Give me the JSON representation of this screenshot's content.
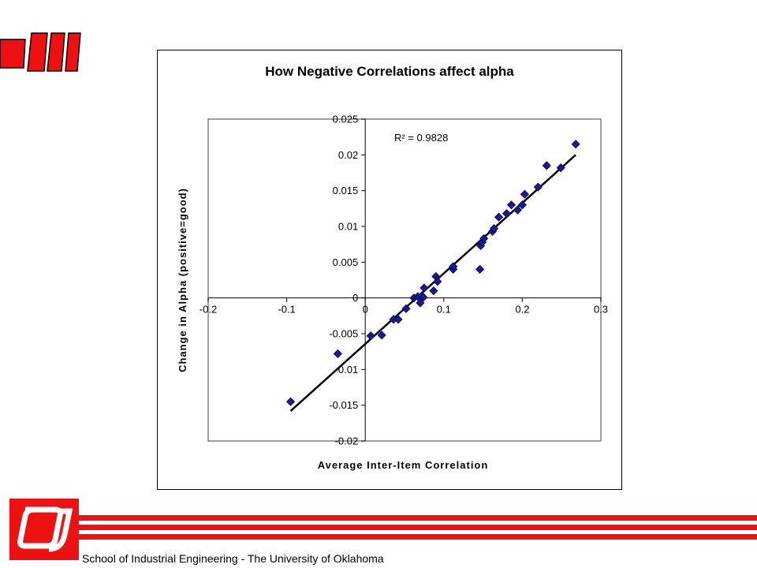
{
  "footer": {
    "text": "School of Industrial Engineering - The University of Oklahoma"
  },
  "colors": {
    "accent": "#ee1111",
    "marker": "#1a1a8c",
    "marker_edge": "#000066"
  },
  "chart_data": {
    "type": "scatter",
    "title": "How Negative Correlations affect alpha",
    "xlabel": "Average Inter-Item Correlation",
    "ylabel": "Change in Alpha (positive=good)",
    "xlim": [
      -0.2,
      0.3
    ],
    "ylim": [
      -0.02,
      0.025
    ],
    "x_ticks": [
      -0.2,
      -0.1,
      0,
      0.1,
      0.2,
      0.3
    ],
    "x_tick_labels": [
      "-0.2",
      "-0.1",
      "0",
      "0.1",
      "0.2",
      "0.3"
    ],
    "y_ticks": [
      0.025,
      0.02,
      0.015,
      0.01,
      0.005,
      0,
      -0.005,
      -0.01,
      -0.015,
      -0.02
    ],
    "y_tick_labels": [
      "0.025",
      "0.02",
      "0.015",
      "0.01",
      "0.005",
      "0",
      "-0.005",
      "-0.01",
      "-0.015",
      "-0.02"
    ],
    "annotation": "R² = 0.9828",
    "trendline": {
      "x": [
        -0.095,
        0.268
      ],
      "y": [
        -0.0158,
        0.02
      ]
    },
    "points": [
      [
        -0.095,
        -0.0145
      ],
      [
        -0.035,
        -0.0078
      ],
      [
        0.007,
        -0.0053
      ],
      [
        0.021,
        -0.0052
      ],
      [
        0.036,
        -0.003
      ],
      [
        0.042,
        -0.003
      ],
      [
        0.052,
        -0.0015
      ],
      [
        0.062,
        0.0
      ],
      [
        0.067,
        0.0002
      ],
      [
        0.07,
        -0.0007
      ],
      [
        0.072,
        0.0003
      ],
      [
        0.074,
        0.0001
      ],
      [
        0.075,
        0.0014
      ],
      [
        0.087,
        0.001
      ],
      [
        0.09,
        0.003
      ],
      [
        0.092,
        0.0023
      ],
      [
        0.112,
        0.004
      ],
      [
        0.112,
        0.0044
      ],
      [
        0.146,
        0.004
      ],
      [
        0.147,
        0.0073
      ],
      [
        0.149,
        0.0078
      ],
      [
        0.151,
        0.0083
      ],
      [
        0.162,
        0.0093
      ],
      [
        0.164,
        0.0097
      ],
      [
        0.17,
        0.0113
      ],
      [
        0.18,
        0.0118
      ],
      [
        0.186,
        0.013
      ],
      [
        0.194,
        0.0123
      ],
      [
        0.2,
        0.013
      ],
      [
        0.203,
        0.0145
      ],
      [
        0.22,
        0.0155
      ],
      [
        0.231,
        0.0185
      ],
      [
        0.249,
        0.0182
      ],
      [
        0.268,
        0.0215
      ]
    ]
  }
}
